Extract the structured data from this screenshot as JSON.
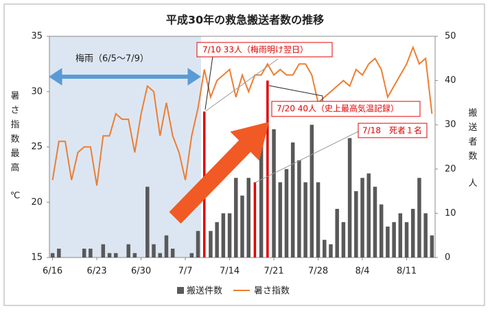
{
  "chart_data": {
    "type": "bar-line",
    "title": "平成30年の救急搬送者数の推移",
    "y_label": "暑さ指数最高",
    "y_unit": "℃",
    "y2_label": "搬送者数",
    "y2_unit": "人",
    "categories": [
      "6/16",
      null,
      null,
      null,
      null,
      null,
      null,
      "6/23",
      null,
      null,
      null,
      null,
      null,
      null,
      "6/30",
      null,
      null,
      null,
      null,
      null,
      null,
      "7/7",
      null,
      null,
      null,
      null,
      null,
      null,
      "7/14",
      null,
      null,
      null,
      null,
      null,
      null,
      "7/21",
      null,
      null,
      null,
      null,
      null,
      null,
      "7/28",
      null,
      null,
      null,
      null,
      null,
      null,
      "8/4",
      null,
      null,
      null,
      null,
      null,
      null,
      "8/11",
      null,
      null,
      null,
      null
    ],
    "series": [
      {
        "name": "搬送件数",
        "kind": "bar",
        "axis": "y2",
        "color": "#595959",
        "values": [
          1,
          2,
          0,
          0,
          0,
          2,
          2,
          0,
          3,
          1,
          1,
          0,
          3,
          1,
          0,
          16,
          3,
          1,
          5,
          2,
          0,
          0,
          1,
          6,
          33,
          6,
          8,
          10,
          10,
          18,
          14,
          18,
          17,
          26,
          40,
          29,
          17,
          20,
          26,
          22,
          17,
          30,
          17,
          4,
          3,
          11,
          8,
          27,
          15,
          18,
          19,
          16,
          12,
          7,
          8,
          10,
          8,
          11,
          18,
          10,
          5
        ],
        "colors": [
          "#595959",
          "#595959",
          "#595959",
          "#595959",
          "#595959",
          "#595959",
          "#595959",
          "#595959",
          "#595959",
          "#595959",
          "#595959",
          "#595959",
          "#595959",
          "#595959",
          "#595959",
          "#595959",
          "#595959",
          "#595959",
          "#595959",
          "#595959",
          "#595959",
          "#595959",
          "#595959",
          "#595959",
          "#e00000",
          "#595959",
          "#595959",
          "#595959",
          "#595959",
          "#595959",
          "#595959",
          "#595959",
          "#e00000",
          "#595959",
          "#e00000",
          "#595959",
          "#595959",
          "#595959",
          "#595959",
          "#595959",
          "#595959",
          "#595959",
          "#595959",
          "#595959",
          "#595959",
          "#595959",
          "#595959",
          "#595959",
          "#595959",
          "#595959",
          "#595959",
          "#595959",
          "#595959",
          "#595959",
          "#595959",
          "#595959",
          "#595959",
          "#595959",
          "#595959",
          "#595959",
          "#595959"
        ]
      },
      {
        "name": "暑さ指数",
        "kind": "line",
        "axis": "y",
        "color": "#ed7d31",
        "values": [
          22,
          25.5,
          25.5,
          22,
          24.5,
          25,
          25,
          21.5,
          26,
          26,
          28,
          27.5,
          27.5,
          24.5,
          28,
          30.5,
          30,
          26,
          29,
          26,
          24.5,
          22,
          26,
          28.5,
          32,
          29.5,
          31,
          31.5,
          32,
          29.5,
          31.5,
          30,
          31.5,
          31.5,
          32.5,
          31.5,
          32,
          31.5,
          31.5,
          32.5,
          32.5,
          31.5,
          29,
          29.5,
          30,
          30.5,
          31,
          30.5,
          32,
          31.5,
          32.5,
          33,
          32,
          29.5,
          30.5,
          31.5,
          32.5,
          34,
          32.5,
          33,
          28
        ]
      }
    ],
    "ylim": [
      15,
      35
    ],
    "yticks": [
      15,
      20,
      25,
      30,
      35
    ],
    "y2lim": [
      0,
      50
    ],
    "y2ticks": [
      0,
      10,
      20,
      30,
      40,
      50
    ],
    "annotations": {
      "rainy_season": "梅雨（6/5～7/9）",
      "jul10": "7/10 33人（梅雨明け翌日）",
      "jul20": "7/20 40人（史上最高気温記録）",
      "jul18": "7/18　死者１名"
    }
  }
}
